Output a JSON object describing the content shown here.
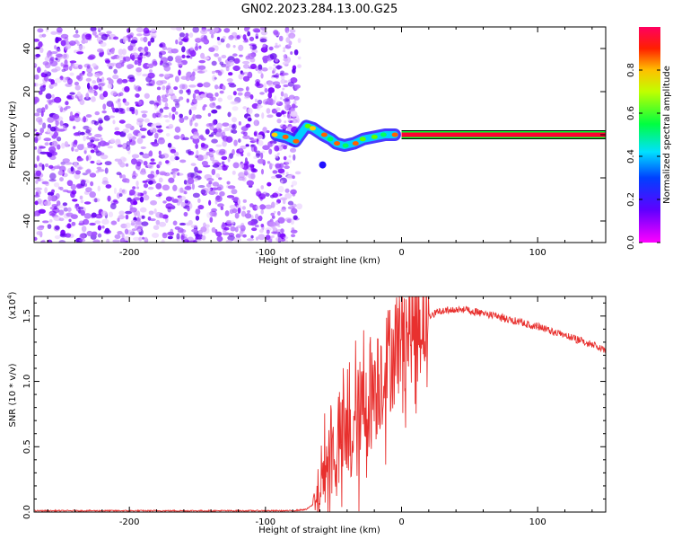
{
  "title": "GN02.2023.284.13.00.G25",
  "chart_data": [
    {
      "type": "heatmap",
      "xlabel": "Height of straight line (km)",
      "ylabel": "Frequency (Hz)",
      "xlim": [
        -270,
        150
      ],
      "ylim": [
        -50,
        50
      ],
      "xticks": [
        -200,
        -100,
        0,
        100
      ],
      "yticks": [
        -40,
        -20,
        0,
        20,
        40
      ],
      "noise_region_x": [
        -270,
        -85
      ],
      "transition_region_x": [
        -95,
        -5
      ],
      "tone_start_x": 0,
      "tone_frequency_hz": 0,
      "track_points": [
        {
          "x": -92,
          "y": 0
        },
        {
          "x": -85,
          "y": -1
        },
        {
          "x": -78,
          "y": -3
        },
        {
          "x": -70,
          "y": 4
        },
        {
          "x": -65,
          "y": 3
        },
        {
          "x": -58,
          "y": 0
        },
        {
          "x": -52,
          "y": -2
        },
        {
          "x": -48,
          "y": -4
        },
        {
          "x": -42,
          "y": -5
        },
        {
          "x": -35,
          "y": -4
        },
        {
          "x": -28,
          "y": -2
        },
        {
          "x": -20,
          "y": -1
        },
        {
          "x": -12,
          "y": 0
        },
        {
          "x": -5,
          "y": 0
        }
      ],
      "colorbar": {
        "label": "Normalized spectral amplitude",
        "ticks": [
          "0.0",
          "0.2",
          "0.4",
          "0.6",
          "0.8"
        ],
        "range": [
          0,
          1
        ]
      },
      "colors": [
        "#ff00ff",
        "#0000ff",
        "#00ffff",
        "#00ff00",
        "#ffff00",
        "#ff0000",
        "#ff0080"
      ],
      "grid": false
    },
    {
      "type": "line",
      "xlabel": "Height of straight line (km)",
      "ylabel": "SNR (10 * v/v)",
      "exponent_label": "(x10",
      "exponent_power": "4",
      "exponent_close": ")",
      "xlim": [
        -270,
        150
      ],
      "ylim": [
        0,
        1.65
      ],
      "xticks": [
        -200,
        -100,
        0,
        100
      ],
      "yticks": [
        "0.0",
        "0.5",
        "1.0",
        "1.5"
      ],
      "series": [
        {
          "color": "#e8302e",
          "x": [
            -270,
            -200,
            -150,
            -100,
            -80,
            -70,
            -62,
            -58,
            -55,
            -50,
            -45,
            -40,
            -35,
            -30,
            -25,
            -20,
            -15,
            -10,
            -5,
            0,
            10,
            20,
            30,
            40,
            50,
            60,
            80,
            100,
            120,
            140,
            150
          ],
          "y": [
            0.01,
            0.01,
            0.01,
            0.01,
            0.01,
            0.02,
            0.08,
            0.25,
            0.4,
            0.45,
            0.5,
            0.55,
            0.6,
            0.75,
            0.85,
            0.95,
            1.05,
            1.15,
            1.25,
            1.35,
            1.45,
            1.53,
            1.57,
            1.58,
            1.57,
            1.55,
            1.5,
            1.45,
            1.38,
            1.31,
            1.27
          ]
        }
      ],
      "grid": false
    }
  ]
}
